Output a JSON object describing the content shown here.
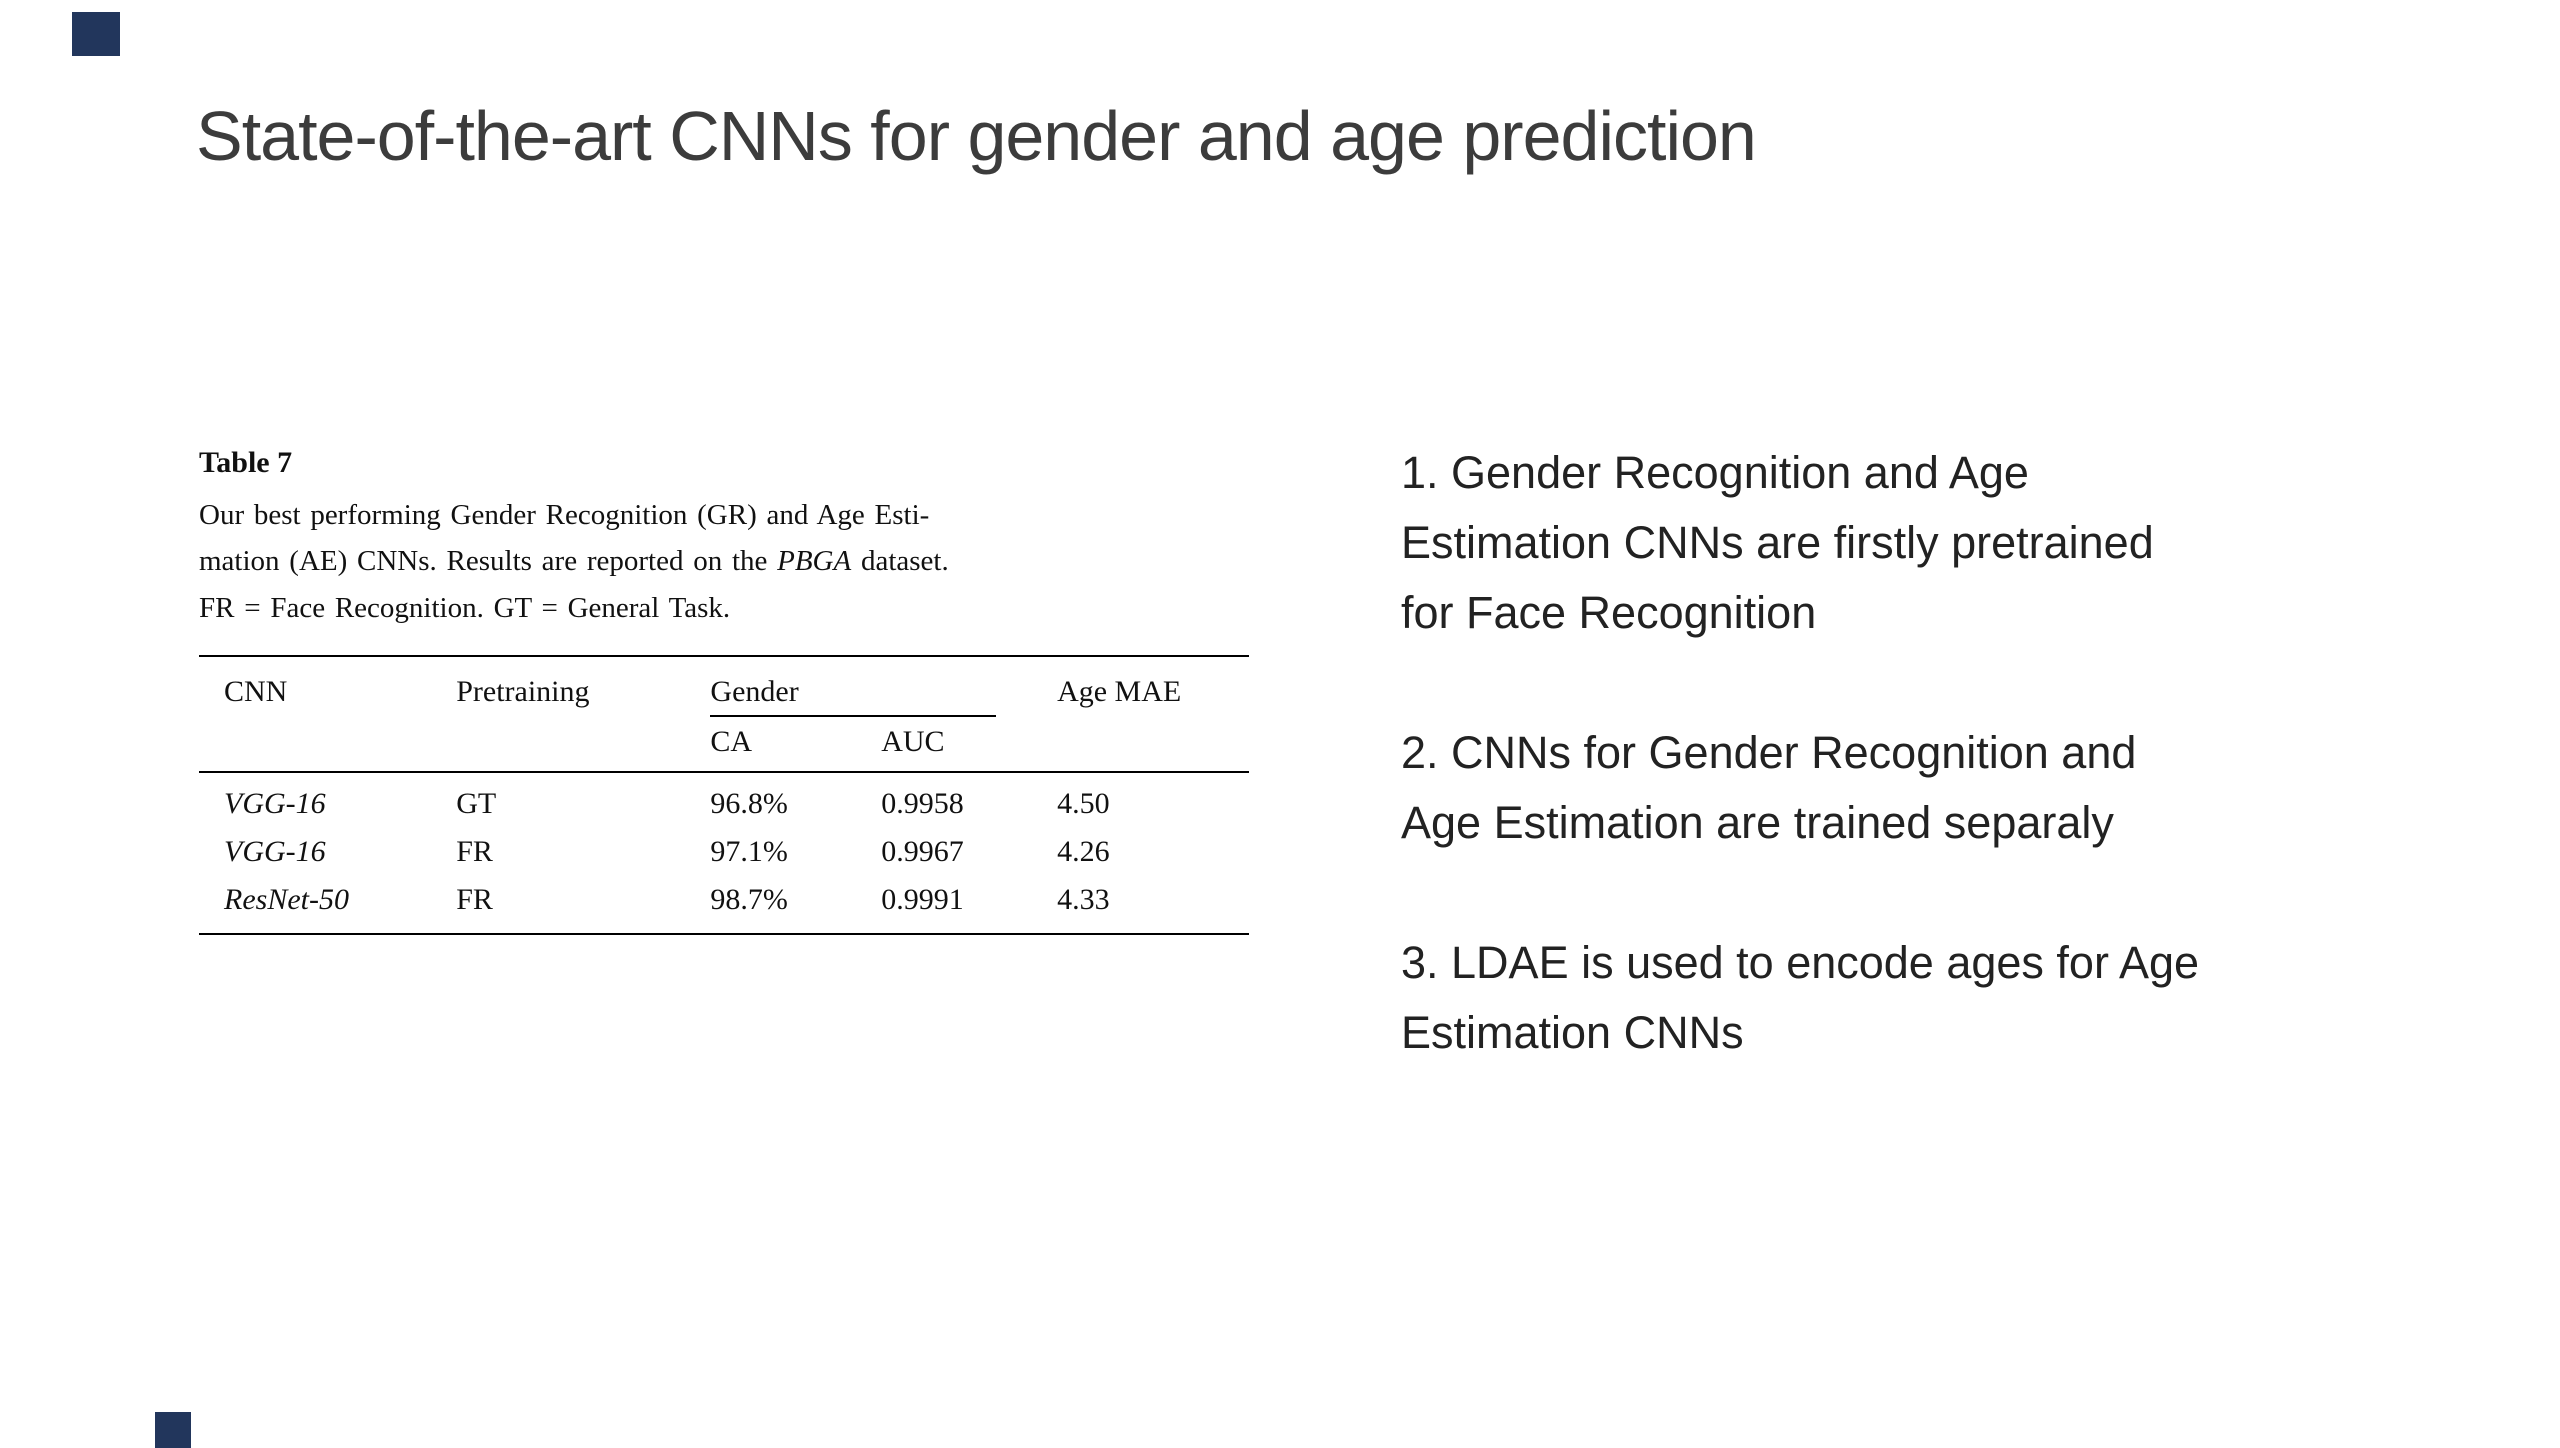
{
  "colors": {
    "accent": "#22365c",
    "title_text": "#3c3c3c",
    "body_text": "#222222",
    "table_text": "#111111"
  },
  "slide": {
    "title": "State-of-the-art CNNs for gender and age prediction"
  },
  "figure": {
    "label": "Table 7",
    "caption": {
      "part1": "Our best performing Gender Recognition (GR) and Age Esti-\nmation (AE) CNNs. Results are reported on the ",
      "italic_word": "PBGA",
      "part2": " dataset.\nFR = Face Recognition. GT = General Task."
    },
    "table": {
      "headers": {
        "cnn": "CNN",
        "pretraining": "Pretraining",
        "gender": "Gender",
        "ca": "CA",
        "auc": "AUC",
        "age_mae": "Age MAE"
      },
      "rows": [
        {
          "cnn": "VGG-16",
          "pretraining": "GT",
          "ca": "96.8%",
          "auc": "0.9958",
          "age_mae": "4.50"
        },
        {
          "cnn": "VGG-16",
          "pretraining": "FR",
          "ca": "97.1%",
          "auc": "0.9967",
          "age_mae": "4.26"
        },
        {
          "cnn": "ResNet-50",
          "pretraining": "FR",
          "ca": "98.7%",
          "auc": "0.9991",
          "age_mae": "4.33"
        }
      ]
    }
  },
  "notes": [
    "1. Gender Recognition and Age\nEstimation CNNs are firstly pretrained\nfor Face Recognition",
    "2. CNNs for Gender Recognition and\nAge Estimation are trained separaly",
    "3. LDAE is used to encode ages for Age\nEstimation CNNs"
  ]
}
